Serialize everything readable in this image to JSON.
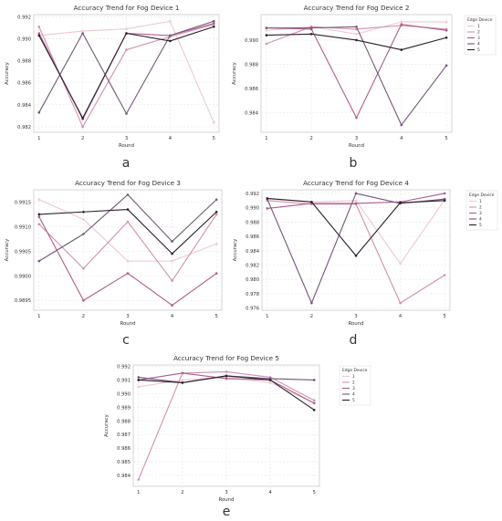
{
  "colors": {
    "c1": "#efc8d2",
    "c2": "#d58fae",
    "c3": "#ad5c8a",
    "c4": "#735777",
    "c5": "#2a1e2c",
    "grid": "#e6e6e6",
    "axis": "#bbbbbb"
  },
  "chart_data": [
    {
      "type": "line",
      "panel_label": "a",
      "title": "Accuracy Trend for Fog Device 1",
      "xlabel": "Round",
      "ylabel": "Accuracy",
      "x": [
        1,
        2,
        3,
        4,
        5
      ],
      "ylim": [
        0.9815,
        0.9922
      ],
      "yticks": [
        "0.982",
        "0.984",
        "0.986",
        "0.988",
        "0.990",
        "0.992"
      ],
      "ytick_values": [
        0.982,
        0.984,
        0.986,
        0.988,
        0.99,
        0.992
      ],
      "legend_title": "",
      "legend": [],
      "grid": true,
      "series": [
        {
          "values": [
            0.9903,
            0.9907,
            0.9909,
            0.9916,
            0.9824
          ]
        },
        {
          "values": [
            0.9911,
            0.982,
            0.989,
            0.9902,
            0.9913
          ]
        },
        {
          "values": [
            0.9905,
            0.9827,
            0.9905,
            0.9903,
            0.9914
          ]
        },
        {
          "values": [
            0.9833,
            0.9905,
            0.9832,
            0.9903,
            0.9916
          ]
        },
        {
          "values": [
            0.9903,
            0.9828,
            0.9905,
            0.9898,
            0.9911
          ]
        }
      ]
    },
    {
      "type": "line",
      "panel_label": "b",
      "title": "Accuracy Trend for Fog Device 2",
      "xlabel": "Round",
      "ylabel": "Accuracy",
      "x": [
        1,
        2,
        3,
        4,
        5
      ],
      "ylim": [
        0.9824,
        0.9921
      ],
      "yticks": [
        "0.984",
        "0.986",
        "0.988",
        "0.990"
      ],
      "ytick_values": [
        0.984,
        0.986,
        0.988,
        0.99
      ],
      "legend_title": "Edge Device",
      "legend": [
        "1",
        "2",
        "3",
        "4",
        "5"
      ],
      "grid": true,
      "series": [
        {
          "values": [
            0.9908,
            0.9911,
            0.9905,
            0.9915,
            0.9915
          ]
        },
        {
          "values": [
            0.9897,
            0.9911,
            0.9909,
            0.9912,
            0.9909
          ]
        },
        {
          "values": [
            0.991,
            0.9909,
            0.9836,
            0.9913,
            0.9908
          ]
        },
        {
          "values": [
            0.991,
            0.991,
            0.9911,
            0.983,
            0.9879
          ]
        },
        {
          "values": [
            0.9904,
            0.9905,
            0.99,
            0.9892,
            0.9902
          ]
        }
      ]
    },
    {
      "type": "line",
      "panel_label": "c",
      "title": "Accuracy Trend for Fog Device 3",
      "xlabel": "Round",
      "ylabel": "Accuracy",
      "x": [
        1,
        2,
        3,
        4,
        5
      ],
      "ylim": [
        0.9893,
        0.99175
      ],
      "yticks": [
        "0.9895",
        "0.9900",
        "0.9905",
        "0.9910",
        "0.9915"
      ],
      "ytick_values": [
        0.9895,
        0.99,
        0.9905,
        0.991,
        0.9915
      ],
      "legend_title": "",
      "legend": [],
      "grid": true,
      "series": [
        {
          "values": [
            0.99155,
            0.99115,
            0.9903,
            0.9903,
            0.99065
          ]
        },
        {
          "values": [
            0.99105,
            0.99015,
            0.9911,
            0.9899,
            0.99125
          ]
        },
        {
          "values": [
            0.9912,
            0.9895,
            0.99005,
            0.9894,
            0.99005
          ]
        },
        {
          "values": [
            0.9903,
            0.99085,
            0.99165,
            0.9907,
            0.99155
          ]
        },
        {
          "values": [
            0.99125,
            0.9913,
            0.99135,
            0.99045,
            0.9913
          ]
        }
      ]
    },
    {
      "type": "line",
      "panel_label": "d",
      "title": "Accuracy Trend for Fog Device 4",
      "xlabel": "Round",
      "ylabel": "Accuracy",
      "x": [
        1,
        2,
        3,
        4,
        5
      ],
      "ylim": [
        0.9757,
        0.9925
      ],
      "yticks": [
        "0.976",
        "0.978",
        "0.980",
        "0.982",
        "0.984",
        "0.986",
        "0.988",
        "0.990",
        "0.992"
      ],
      "ytick_values": [
        0.976,
        0.978,
        0.98,
        0.982,
        0.984,
        0.986,
        0.988,
        0.99,
        0.992
      ],
      "legend_title": "Edge Device",
      "legend": [
        "1",
        "2",
        "3",
        "4",
        "5"
      ],
      "grid": true,
      "series": [
        {
          "values": [
            0.9912,
            0.9908,
            0.991,
            0.9822,
            0.9911
          ]
        },
        {
          "values": [
            0.991,
            0.9905,
            0.9905,
            0.9767,
            0.9806
          ]
        },
        {
          "values": [
            0.9899,
            0.9906,
            0.9906,
            0.9908,
            0.992
          ]
        },
        {
          "values": [
            0.9912,
            0.9767,
            0.992,
            0.9906,
            0.9912
          ]
        },
        {
          "values": [
            0.9913,
            0.9908,
            0.9833,
            0.9907,
            0.991
          ]
        }
      ]
    },
    {
      "type": "line",
      "panel_label": "e",
      "title": "Accuracy Trend for Fog Device 5",
      "xlabel": "Round",
      "ylabel": "Accuracy",
      "x": [
        1,
        2,
        3,
        4,
        5
      ],
      "ylim": [
        0.9832,
        0.9921
      ],
      "yticks": [
        "0.984",
        "0.985",
        "0.986",
        "0.987",
        "0.988",
        "0.989",
        "0.990",
        "0.991",
        "0.992"
      ],
      "ytick_values": [
        0.984,
        0.985,
        0.986,
        0.987,
        0.988,
        0.989,
        0.99,
        0.991,
        0.992
      ],
      "legend_title": "Edge Device",
      "legend": [
        "1",
        "2",
        "3",
        "4",
        "5"
      ],
      "grid": true,
      "series": [
        {
          "values": [
            0.9905,
            0.991,
            0.9912,
            0.9908,
            0.9893
          ]
        },
        {
          "values": [
            0.9837,
            0.9915,
            0.9916,
            0.9912,
            0.9895
          ]
        },
        {
          "values": [
            0.991,
            0.9915,
            0.9911,
            0.991,
            0.9893
          ]
        },
        {
          "values": [
            0.9912,
            0.9908,
            0.9913,
            0.9911,
            0.991
          ]
        },
        {
          "values": [
            0.991,
            0.9908,
            0.9913,
            0.991,
            0.9888
          ]
        }
      ]
    }
  ]
}
